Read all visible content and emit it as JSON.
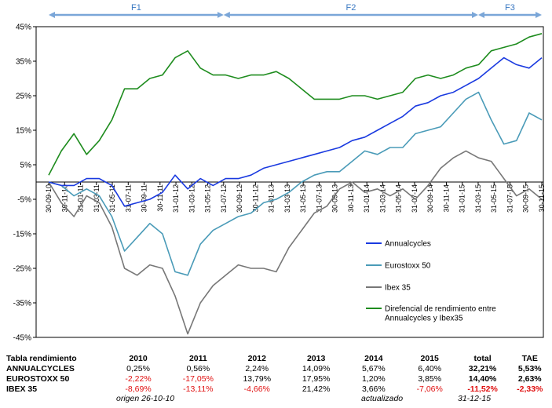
{
  "chart_data": {
    "type": "line",
    "phases": [
      {
        "label": "F1",
        "from": "2010-09-30",
        "to": "2012-07-31"
      },
      {
        "label": "F2",
        "from": "2012-07-31",
        "to": "2015-03-31"
      },
      {
        "label": "F3",
        "from": "2015-03-31",
        "to": "2015-11-30"
      }
    ],
    "y_axis": {
      "min": -45,
      "max": 45,
      "step": 10,
      "unit": "%",
      "labels": [
        "45%",
        "35%",
        "25%",
        "15%",
        "5%",
        "-5%",
        "-15%",
        "-25%",
        "-35%",
        "-45%"
      ]
    },
    "x_axis": {
      "labels": [
        "30-09-10",
        "30-11-10",
        "31-01-11",
        "31-03-11",
        "31-05-11",
        "31-07-11",
        "30-09-11",
        "30-11-11",
        "31-01-12",
        "31-03-12",
        "31-05-12",
        "31-07-12",
        "30-09-12",
        "30-11-12",
        "31-01-13",
        "31-03-13",
        "31-05-13",
        "31-07-13",
        "30-09-13",
        "30-11-13",
        "31-01-14",
        "31-03-14",
        "31-05-14",
        "31-07-14",
        "30-09-14",
        "30-11-14",
        "31-01-15",
        "31-03-15",
        "31-05-15",
        "31-07-15",
        "30-09-15",
        "30-11-15"
      ]
    },
    "grid": false,
    "legend_position": "right",
    "series": [
      {
        "name": "Annualcycles",
        "color": "#1a3ae0",
        "values": [
          0,
          -1,
          -1,
          1,
          1,
          -1,
          -7,
          -6,
          -5,
          -3,
          2,
          -2,
          1,
          -1,
          1,
          1,
          2,
          4,
          5,
          6,
          7,
          8,
          9,
          10,
          12,
          13,
          15,
          17,
          19,
          22,
          23,
          25,
          26,
          28,
          30,
          33,
          36,
          34,
          33,
          36
        ]
      },
      {
        "name": "Eurostoxx 50",
        "color": "#4a9bb8",
        "values": [
          0,
          -1,
          -4,
          -2,
          -4,
          -10,
          -20,
          -16,
          -12,
          -15,
          -26,
          -27,
          -18,
          -14,
          -12,
          -10,
          -9,
          -6,
          -5,
          -3,
          0,
          2,
          3,
          3,
          6,
          9,
          8,
          10,
          10,
          14,
          15,
          16,
          20,
          24,
          26,
          18,
          11,
          12,
          20,
          18
        ]
      },
      {
        "name": "Ibex 35",
        "color": "#777777",
        "values": [
          0,
          -6,
          -10,
          -4,
          -6,
          -13,
          -25,
          -27,
          -24,
          -25,
          -33,
          -44,
          -35,
          -30,
          -27,
          -24,
          -25,
          -25,
          -26,
          -19,
          -14,
          -9,
          -7,
          -2,
          0,
          -3,
          -2,
          -4,
          -2,
          -5,
          -1,
          4,
          7,
          9,
          7,
          6,
          1,
          -4,
          -2,
          -5
        ]
      },
      {
        "name": "Direfencial de rendimiento entre Annualcycles y Ibex35",
        "color": "#1e8c1e",
        "values": [
          2,
          9,
          14,
          8,
          12,
          18,
          27,
          27,
          30,
          31,
          36,
          38,
          33,
          31,
          31,
          30,
          31,
          31,
          32,
          30,
          27,
          24,
          24,
          24,
          25,
          25,
          24,
          25,
          26,
          30,
          31,
          30,
          31,
          33,
          34,
          38,
          39,
          40,
          42,
          43
        ]
      }
    ]
  },
  "legend": [
    {
      "label": "Annualcycles",
      "color": "#1a3ae0"
    },
    {
      "label": "Eurostoxx 50",
      "color": "#4a9bb8"
    },
    {
      "label": "Ibex 35",
      "color": "#777777"
    },
    {
      "label": "Direfencial de rendimiento entre",
      "label2": "Annualcycles y Ibex35",
      "color": "#1e8c1e"
    }
  ],
  "table": {
    "header": [
      "Tabla rendimiento",
      "2010",
      "2011",
      "2012",
      "2013",
      "2014",
      "2015",
      "total",
      "TAE"
    ],
    "rows": [
      {
        "name": "ANNUALCYCLES",
        "cells": [
          {
            "v": "0,25%",
            "neg": false
          },
          {
            "v": "0,56%",
            "neg": false
          },
          {
            "v": "2,24%",
            "neg": false
          },
          {
            "v": "14,09%",
            "neg": false
          },
          {
            "v": "5,67%",
            "neg": false
          },
          {
            "v": "6,40%",
            "neg": false
          },
          {
            "v": "32,21%",
            "neg": false
          },
          {
            "v": "5,53%",
            "neg": false
          }
        ]
      },
      {
        "name": "EUROSTOXX 50",
        "cells": [
          {
            "v": "-2,22%",
            "neg": true
          },
          {
            "v": "-17,05%",
            "neg": true
          },
          {
            "v": "13,79%",
            "neg": false
          },
          {
            "v": "17,95%",
            "neg": false
          },
          {
            "v": "1,20%",
            "neg": false
          },
          {
            "v": "3,85%",
            "neg": false
          },
          {
            "v": "14,40%",
            "neg": false
          },
          {
            "v": "2,63%",
            "neg": false
          }
        ]
      },
      {
        "name": "IBEX 35",
        "cells": [
          {
            "v": "-8,69%",
            "neg": true
          },
          {
            "v": "-13,11%",
            "neg": true
          },
          {
            "v": "-4,66%",
            "neg": true
          },
          {
            "v": "21,42%",
            "neg": false
          },
          {
            "v": "3,66%",
            "neg": false
          },
          {
            "v": "-7,06%",
            "neg": true
          },
          {
            "v": "-11,52%",
            "neg": true
          },
          {
            "v": "-2,33%",
            "neg": true
          }
        ]
      }
    ],
    "notes": {
      "origin": "origen 26-10-10",
      "updated": "actualizado",
      "date": "31-12-15"
    }
  }
}
